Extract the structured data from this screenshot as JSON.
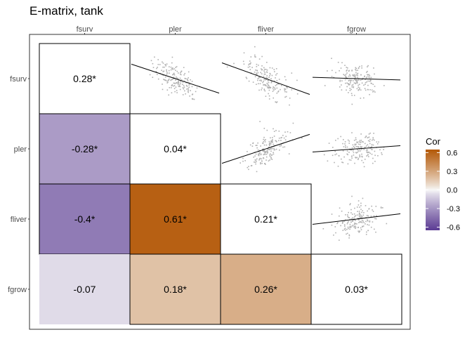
{
  "chart_data": {
    "type": "heatmap",
    "title": "E-matrix, tank",
    "variables": [
      "fsurv",
      "pler",
      "fliver",
      "fgrow"
    ],
    "diagonal": [
      "0.28*",
      "0.04*",
      "0.21*",
      "0.03*"
    ],
    "lower": [
      {
        "row": "pler",
        "col": "fsurv",
        "value": -0.28,
        "label": "-0.28*"
      },
      {
        "row": "fliver",
        "col": "fsurv",
        "value": -0.4,
        "label": "-0.4*"
      },
      {
        "row": "fliver",
        "col": "pler",
        "value": 0.61,
        "label": "0.61*"
      },
      {
        "row": "fgrow",
        "col": "fsurv",
        "value": -0.07,
        "label": "-0.07"
      },
      {
        "row": "fgrow",
        "col": "pler",
        "value": 0.18,
        "label": "0.18*"
      },
      {
        "row": "fgrow",
        "col": "fliver",
        "value": 0.26,
        "label": "0.26*"
      }
    ],
    "upper_type": "scatter with fitted line",
    "legend": {
      "title": "Cor",
      "ticks": [
        "0.6",
        "0.3",
        "0.0",
        "-0.3",
        "-0.6"
      ],
      "range": [
        -0.65,
        0.65
      ],
      "colors": {
        "low": "#5b3b93",
        "mid": "#f7f7f7",
        "high": "#b35806"
      },
      "position": "right"
    }
  }
}
